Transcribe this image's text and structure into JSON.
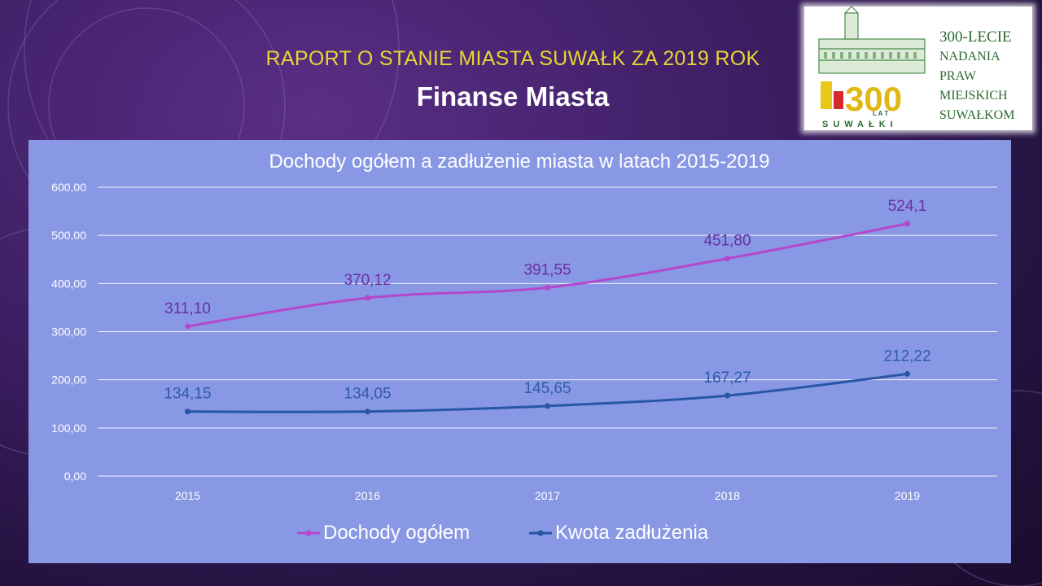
{
  "slide": {
    "pretitle": "RAPORT O STANIE MIASTA SUWAŁK ZA 2019 ROK",
    "title": "Finanse Miasta"
  },
  "logo": {
    "lines": [
      "300-LECIE",
      "NADANIA",
      "PRAW",
      "MIEJSKICH",
      "SUWAŁKOM"
    ],
    "badge_text": "300",
    "badge_sub": "L A T",
    "city": "SUWAŁKI"
  },
  "colors": {
    "pretitle": "#e8d534",
    "chart_background": "#8898e4",
    "series_income": "#b447cc",
    "series_debt": "#2756a6",
    "label_income": "#6b2fa0",
    "label_debt": "#2d5ba8"
  },
  "chart_data": {
    "type": "line",
    "title": "Dochody ogółem a  zadłużenie miasta w latach 2015-2019",
    "categories": [
      "2015",
      "2016",
      "2017",
      "2018",
      "2019"
    ],
    "series": [
      {
        "name": "Dochody ogółem",
        "values": [
          311.1,
          370.12,
          391.55,
          451.8,
          524.1
        ],
        "labels": [
          "311,10",
          "370,12",
          "391,55",
          "451,80",
          "524,1"
        ],
        "color": "#b447cc",
        "label_color": "#6b2fa0"
      },
      {
        "name": "Kwota zadłużenia",
        "values": [
          134.15,
          134.05,
          145.65,
          167.27,
          212.22
        ],
        "labels": [
          "134,15",
          "134,05",
          "145,65",
          "167,27",
          "212,22"
        ],
        "color": "#2756a6",
        "label_color": "#2d5ba8"
      }
    ],
    "yticks": [
      "0,00",
      "100,00",
      "200,00",
      "300,00",
      "400,00",
      "500,00",
      "600,00"
    ],
    "ylim": [
      0,
      600
    ],
    "grid": true,
    "legend": "bottom"
  }
}
